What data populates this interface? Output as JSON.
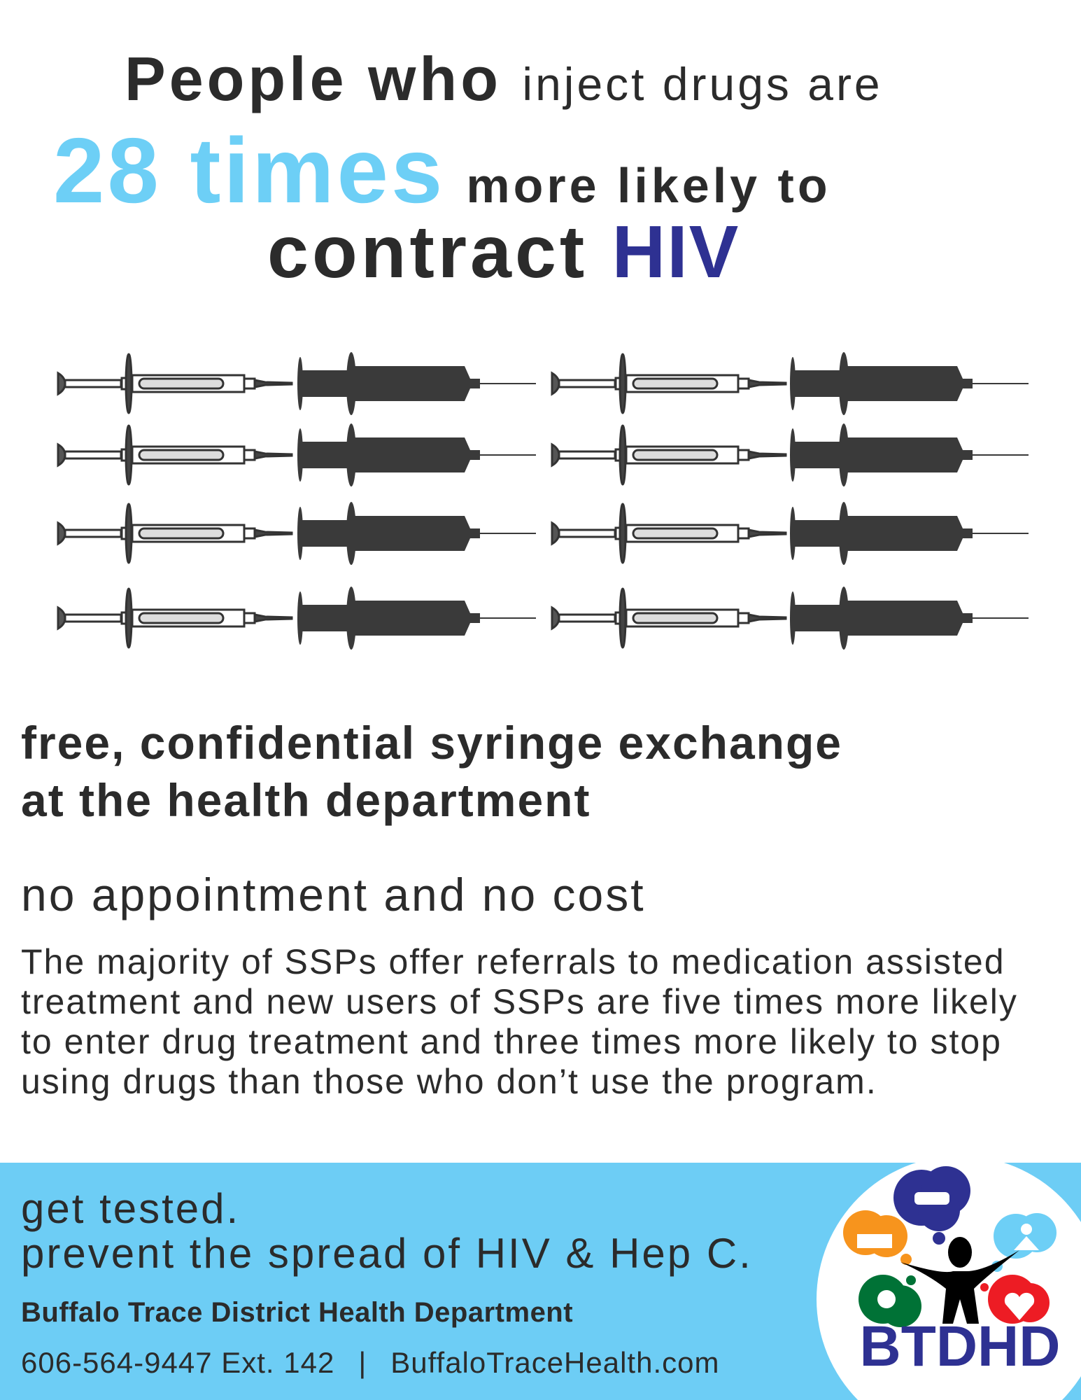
{
  "headline": {
    "part1_bold": "People who",
    "part1_light": "inject drugs are",
    "highlight": "28 times",
    "part2": "more likely to",
    "part3": "contract",
    "hiv": "HIV"
  },
  "colors": {
    "accent_blue": "#6dcff6",
    "hiv_navy": "#2e3192",
    "text": "#2b2b2b",
    "band": "#6dcdf5"
  },
  "icons": {
    "outline_syringe": "syringe-outline-icon",
    "solid_syringe": "syringe-solid-icon"
  },
  "offer": {
    "line1": "free, confidential syringe exchange",
    "line2": "at the health department",
    "subhead": "no appointment and no cost",
    "paragraph": "The majority of SSPs offer referrals to medication assisted treatment and new users of SSPs are five times more likely to enter drug treatment and three times more likely to stop using drugs than those who don’t use the program."
  },
  "footer": {
    "line1": "get tested.",
    "line2": "prevent the spread of HIV & Hep C.",
    "org": "Buffalo Trace District Health Department",
    "phone": "606-564-9447 Ext. 142",
    "separator": "|",
    "website": "BuffaloTraceHealth.com",
    "logo_text": "BTDHD"
  }
}
